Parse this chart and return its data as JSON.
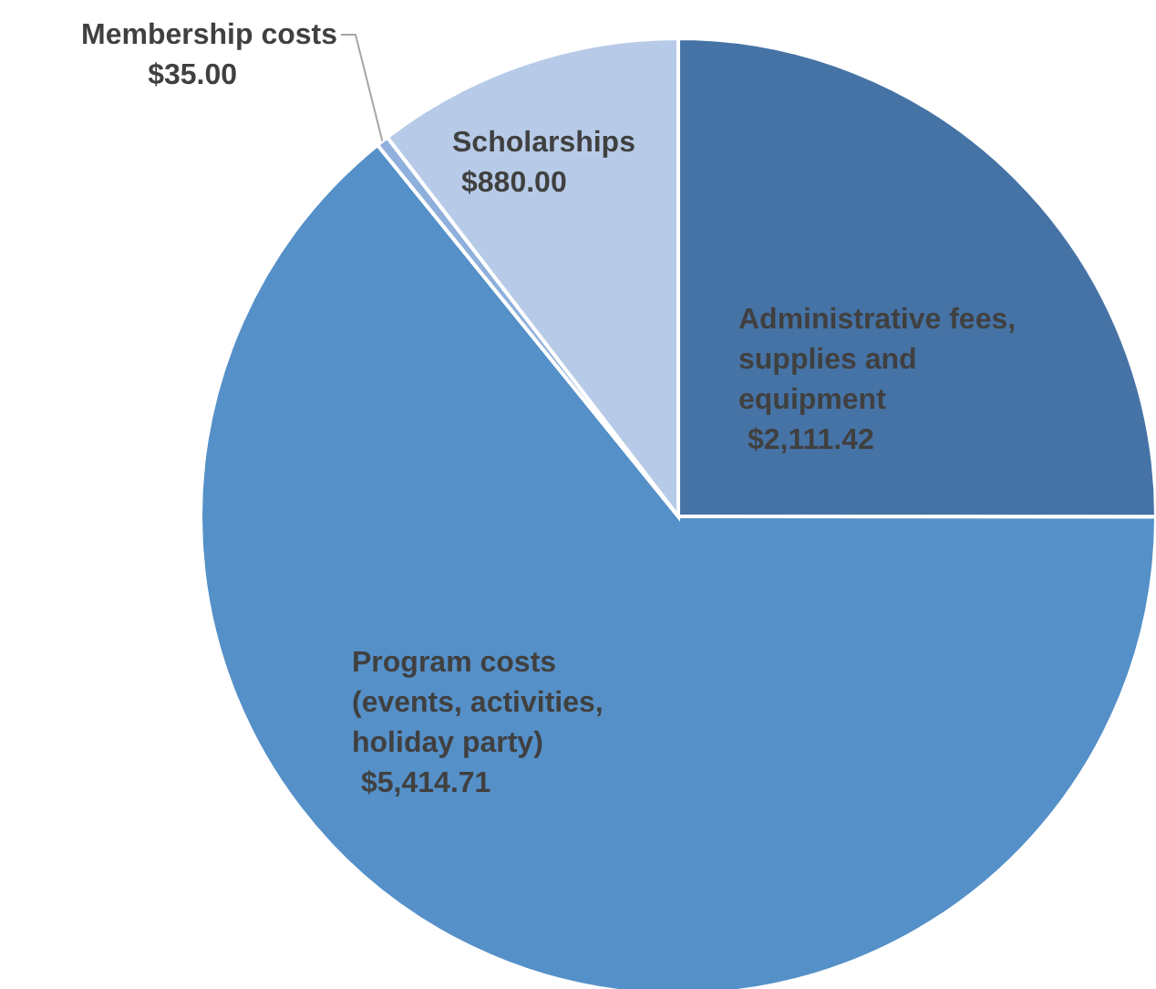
{
  "chart_data": {
    "type": "pie",
    "categories": [
      "Administrative fees, supplies and equipment",
      "Program costs (events, activities, holiday party)",
      "Membership costs",
      "Scholarships"
    ],
    "values": [
      2111.42,
      5414.71,
      35,
      880
    ],
    "colors": [
      "#4673a6",
      "#5590c8",
      "#8fb0dc",
      "#b7cbe8"
    ],
    "value_labels": [
      "$2,111.42",
      "$5,414.71",
      "$35.00",
      "$880.00"
    ]
  }
}
